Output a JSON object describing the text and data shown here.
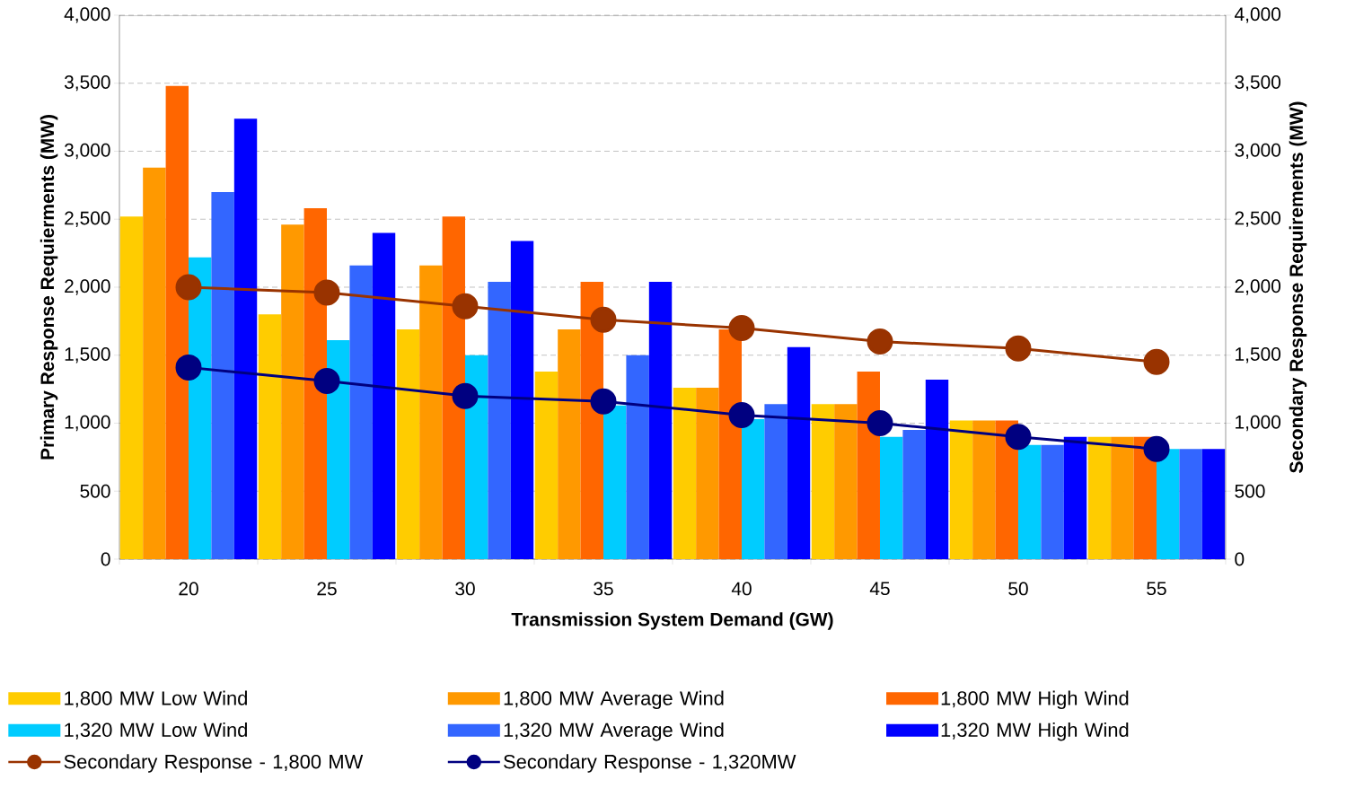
{
  "chart_data": {
    "type": "bar",
    "xlabel": "Transmission System Demand (GW)",
    "ylabel": "Primary Response Requierments (MW)",
    "y2label": "Secondary Response Requirements (MW)",
    "categories": [
      "20",
      "25",
      "30",
      "35",
      "40",
      "45",
      "50",
      "55"
    ],
    "series": [
      {
        "name": "1,800 MW Low Wind",
        "color": "#ffcc00",
        "values": [
          2520,
          1800,
          1690,
          1380,
          1260,
          1140,
          1020,
          900
        ]
      },
      {
        "name": "1,800 MW Average Wind",
        "color": "#ff9900",
        "values": [
          2880,
          2460,
          2160,
          1690,
          1260,
          1140,
          1020,
          900
        ]
      },
      {
        "name": "1,800 MW High Wind",
        "color": "#ff6600",
        "values": [
          3480,
          2580,
          2520,
          2040,
          1690,
          1380,
          1020,
          900
        ]
      },
      {
        "name": "1,320 MW Low Wind",
        "color": "#00ccff",
        "values": [
          2220,
          1610,
          1500,
          1130,
          1030,
          900,
          840,
          810
        ]
      },
      {
        "name": "1,320 MW Average Wind",
        "color": "#3366ff",
        "values": [
          2700,
          2160,
          2040,
          1500,
          1140,
          950,
          840,
          810
        ]
      },
      {
        "name": "1,320 MW High Wind",
        "color": "#0000ff",
        "values": [
          3240,
          2400,
          2340,
          2040,
          1560,
          1320,
          900,
          810
        ]
      },
      {
        "name": "Secondary Response - 1,800 MW",
        "type": "line",
        "axis": "y2",
        "color": "#993300",
        "values": [
          2000,
          1960,
          1860,
          1760,
          1700,
          1600,
          1550,
          1450
        ]
      },
      {
        "name": "Secondary Response - 1,320MW",
        "type": "line",
        "axis": "y2",
        "color": "#000080",
        "values": [
          1410,
          1310,
          1200,
          1160,
          1060,
          1000,
          900,
          810
        ]
      }
    ],
    "ylim": [
      0,
      4000
    ],
    "yticks": [
      {
        "value": 0,
        "label": "0"
      },
      {
        "value": 500,
        "label": "500"
      },
      {
        "value": 1000,
        "label": "1,000"
      },
      {
        "value": 1500,
        "label": "1,500"
      },
      {
        "value": 2000,
        "label": "2,000"
      },
      {
        "value": 2500,
        "label": "2,500"
      },
      {
        "value": 3000,
        "label": "3,000"
      },
      {
        "value": 3500,
        "label": "3,500"
      },
      {
        "value": 4000,
        "label": "4,000"
      }
    ],
    "y2lim": [
      0,
      4000
    ],
    "y2ticks": [
      {
        "value": 0,
        "label": "0"
      },
      {
        "value": 500,
        "label": "500"
      },
      {
        "value": 1000,
        "label": "1,000"
      },
      {
        "value": 1500,
        "label": "1,500"
      },
      {
        "value": 2000,
        "label": "2,000"
      },
      {
        "value": 2500,
        "label": "2,500"
      },
      {
        "value": 3000,
        "label": "3,000"
      },
      {
        "value": 3500,
        "label": "3,500"
      },
      {
        "value": 4000,
        "label": "4,000"
      }
    ],
    "grid": "y",
    "legend": "bottom",
    "marker": "circle",
    "line_style": "solid"
  }
}
